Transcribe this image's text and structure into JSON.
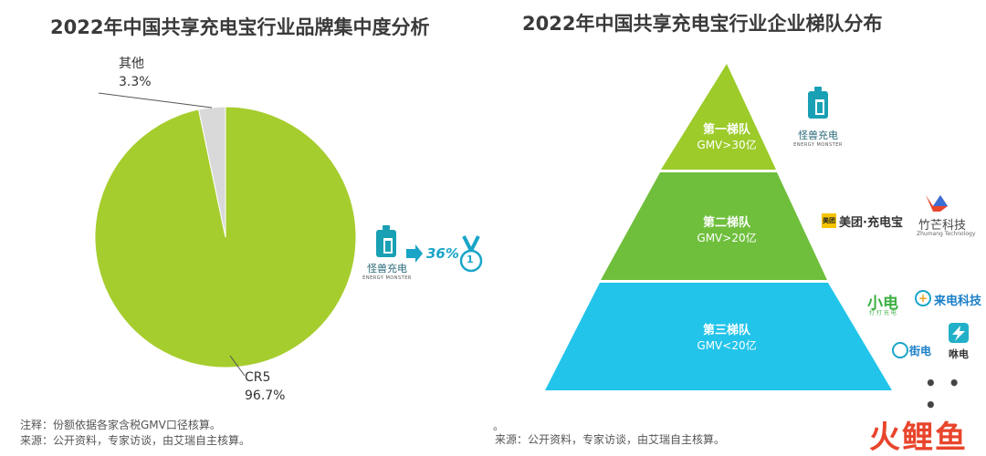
{
  "left": {
    "title": "2022年中国共享充电宝行业品牌集中度分析",
    "other_label": "其他",
    "other_pct": "3.3%",
    "cr5_label": "CR5",
    "cr5_pct": "96.7%",
    "brand_name": "怪兽充电",
    "brand_sub": "ENERGY MONSTER",
    "share_text": "36%",
    "rank_badge": "1",
    "note_line1": "注释：份额依据各家含税GMV口径核算。",
    "note_line2": "来源：公开资料，专家访谈，由艾瑞自主核算。"
  },
  "right": {
    "title": "2022年中国共享充电宝行业企业梯队分布",
    "tiers": [
      {
        "name": "第一梯队",
        "gmv": "GMV>30亿",
        "color": "#9ccb2a"
      },
      {
        "name": "第二梯队",
        "gmv": "GMV>20亿",
        "color": "#6fbf3c"
      },
      {
        "name": "第三梯队",
        "gmv": "GMV<20亿",
        "color": "#22c4ea"
      }
    ],
    "tier1_brands": [
      {
        "name": "怪兽充电",
        "sub": "ENERGY MONSTER"
      }
    ],
    "tier2_brands": [
      {
        "name": "美团·充电宝",
        "badge": "美团"
      },
      {
        "name": "竹芒科技",
        "sub": "Zhumang Technology"
      }
    ],
    "tier3_brands": [
      {
        "name": "小电",
        "sub": "打 打 充 电"
      },
      {
        "name": "来电科技"
      },
      {
        "name": "街电"
      },
      {
        "name": "咻电"
      }
    ],
    "more": "• • •",
    "dot_mark": "。",
    "note": "来源：公开资料，专家访谈，由艾瑞自主核算。"
  },
  "watermark": "火鲤鱼",
  "chart_data": [
    {
      "type": "pie",
      "title": "2022年中国共享充电宝行业品牌集中度分析",
      "slices": [
        {
          "label": "CR5",
          "value": 96.7,
          "color": "#a6cd2e"
        },
        {
          "label": "其他",
          "value": 3.3,
          "color": "#d9d9d9"
        }
      ],
      "annotation": {
        "brand": "怪兽充电",
        "share": 36,
        "rank": 1
      }
    },
    {
      "type": "table",
      "title": "2022年中国共享充电宝行业企业梯队分布",
      "rows": [
        {
          "tier": "第一梯队",
          "gmv": "GMV>30亿",
          "brands": [
            "怪兽充电"
          ]
        },
        {
          "tier": "第二梯队",
          "gmv": "GMV>20亿",
          "brands": [
            "美团·充电宝",
            "竹芒科技"
          ]
        },
        {
          "tier": "第三梯队",
          "gmv": "GMV<20亿",
          "brands": [
            "小电",
            "来电科技",
            "街电",
            "咻电"
          ]
        }
      ]
    }
  ]
}
